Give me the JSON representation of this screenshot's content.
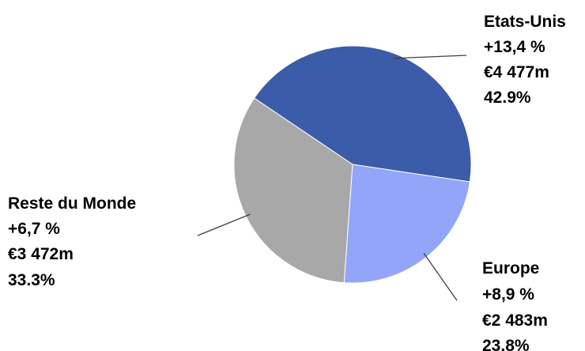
{
  "chart_data": {
    "type": "pie",
    "title": "",
    "legend": "none",
    "slices": [
      {
        "name": "Etats-Unis",
        "growth": "+13,4 %",
        "amount": "€4 477m",
        "share": "42.9%",
        "value": 42.9,
        "color": "#3b5ca8"
      },
      {
        "name": "Europe",
        "growth": "+8,9 %",
        "amount": "€2 483m",
        "share": "23.8%",
        "value": 23.8,
        "color": "#92a5f8"
      },
      {
        "name": "Reste du Monde",
        "growth": "+6,7 %",
        "amount": "€3 472m",
        "share": "33.3%",
        "value": 33.3,
        "color": "#a8a8a8"
      }
    ]
  }
}
